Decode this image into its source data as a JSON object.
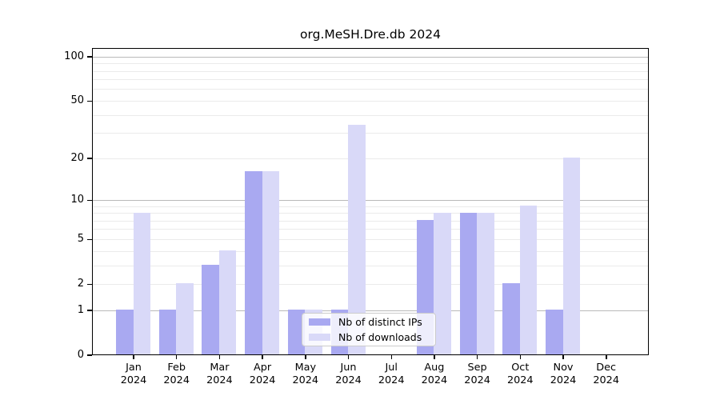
{
  "figure": {
    "title": "org.MeSH.Dre.db 2024"
  },
  "legend": {
    "items": [
      {
        "id": "distinct-ips",
        "label": "Nb of distinct IPs",
        "color": "#a9a9f1"
      },
      {
        "id": "downloads",
        "label": "Nb of downloads",
        "color": "#d9d9f8"
      }
    ]
  },
  "colors": {
    "bar_distinct_ips": "#a9a9f1",
    "bar_downloads": "#d9d9f8",
    "major_gridline": "#b9b9b9",
    "minor_gridline": "#ebebeb",
    "axis": "#000000"
  },
  "chart_data": {
    "type": "bar",
    "title": "org.MeSH.Dre.db 2024",
    "categories": [
      "Jan 2024",
      "Feb 2024",
      "Mar 2024",
      "Apr 2024",
      "May 2024",
      "Jun 2024",
      "Jul 2024",
      "Aug 2024",
      "Sep 2024",
      "Oct 2024",
      "Nov 2024",
      "Dec 2024"
    ],
    "series": [
      {
        "name": "Nb of distinct IPs",
        "color": "#a9a9f1",
        "values": [
          1,
          1,
          3,
          16,
          1,
          1,
          0,
          7,
          8,
          2,
          1,
          0
        ]
      },
      {
        "name": "Nb of downloads",
        "color": "#d9d9f8",
        "values": [
          8,
          2,
          4,
          16,
          1,
          34,
          0,
          8,
          8,
          9,
          20,
          0
        ]
      }
    ],
    "y_axis": {
      "scale": "log1p",
      "ylim": [
        0,
        100
      ],
      "ticks": [
        0,
        1,
        2,
        5,
        10,
        20,
        50,
        100
      ],
      "major_gridlines": [
        1,
        10,
        100
      ],
      "minor_gridlines": [
        2,
        3,
        4,
        5,
        6,
        7,
        8,
        9,
        20,
        30,
        40,
        50,
        60,
        70,
        80,
        90
      ]
    },
    "x_axis": {
      "tick_year": "2024"
    },
    "grid": true,
    "legend_position": "lower center"
  }
}
